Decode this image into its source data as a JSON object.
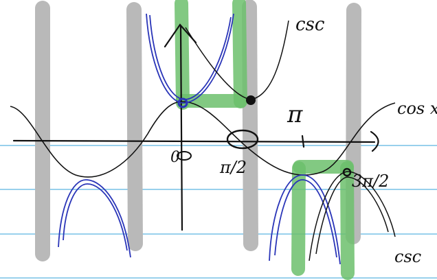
{
  "labels": {
    "csc_top": "csc",
    "cos": "cos x",
    "pi": "π",
    "half_pi": "π/2",
    "zero": "0",
    "three_half_pi": "3π/2",
    "csc_bottom": "csc"
  }
}
